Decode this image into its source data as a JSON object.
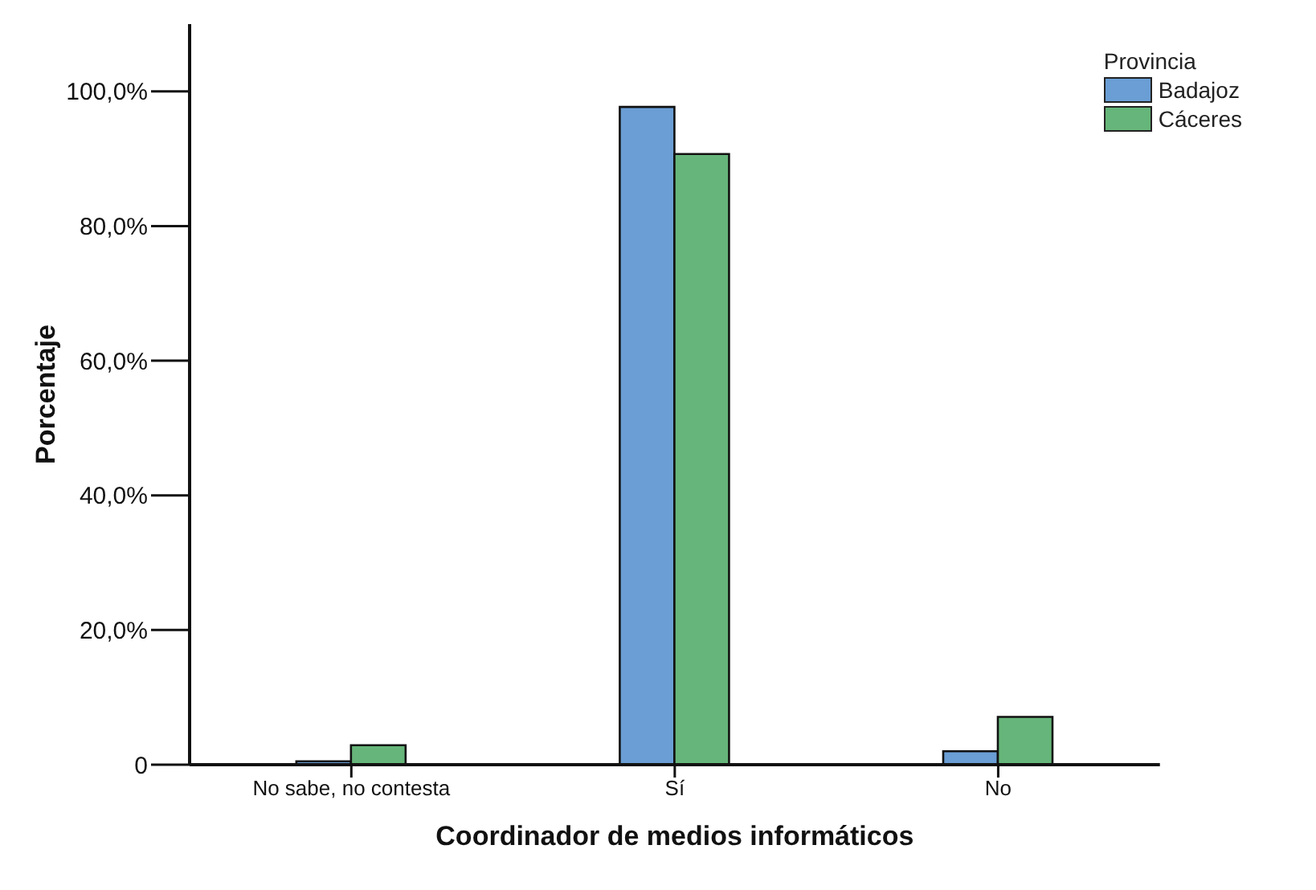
{
  "chart_data": {
    "type": "bar",
    "xlabel": "Coordinador de medios informáticos",
    "ylabel": "Porcentaje",
    "legend_title": "Provincia",
    "categories": [
      "No sabe, no contesta",
      "Sí",
      "No"
    ],
    "series": [
      {
        "name": "Badajoz",
        "color": "#6a9ed4",
        "values": [
          0.5,
          97.7,
          2.0
        ]
      },
      {
        "name": "Cáceres",
        "color": "#66b57a",
        "values": [
          2.9,
          90.7,
          7.1
        ]
      }
    ],
    "ylim": [
      0,
      110
    ],
    "yticks": [
      {
        "value": 0,
        "label": "0"
      },
      {
        "value": 20,
        "label": "20,0%"
      },
      {
        "value": 40,
        "label": "40,0%"
      },
      {
        "value": 60,
        "label": "60,0%"
      },
      {
        "value": 80,
        "label": "80,0%"
      },
      {
        "value": 100,
        "label": "100,0%"
      }
    ],
    "grid": false,
    "legend": "top right"
  }
}
